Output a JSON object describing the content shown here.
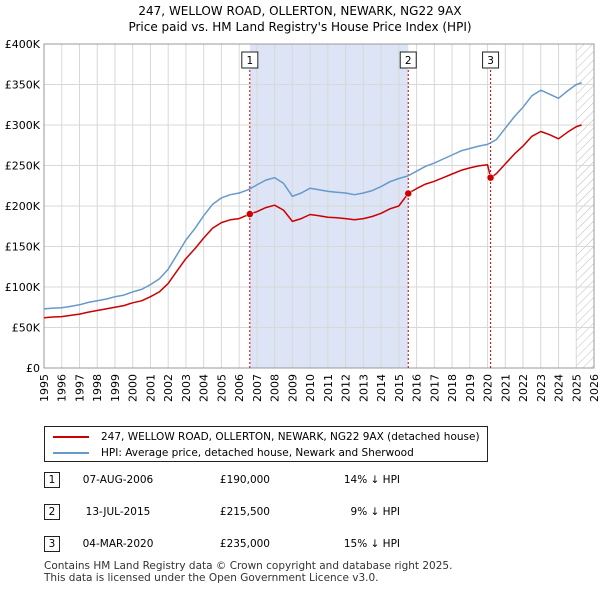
{
  "title": "247, WELLOW ROAD, OLLERTON, NEWARK, NG22 9AX",
  "subtitle": "Price paid vs. HM Land Registry's House Price Index (HPI)",
  "colors": {
    "price": "#cc0000",
    "hpi": "#6699cc",
    "shade": "#dce4f5",
    "marker_line": "#cc0000"
  },
  "legend": {
    "price_label": "247, WELLOW ROAD, OLLERTON, NEWARK, NG22 9AX (detached house)",
    "hpi_label": "HPI: Average price, detached house, Newark and Sherwood"
  },
  "sales": [
    {
      "num": "1",
      "date": "07-AUG-2006",
      "price": "£190,000",
      "hpi": "14% ↓ HPI"
    },
    {
      "num": "2",
      "date": "13-JUL-2015",
      "price": "£215,500",
      "hpi": "9% ↓ HPI"
    },
    {
      "num": "3",
      "date": "04-MAR-2020",
      "price": "£235,000",
      "hpi": "15% ↓ HPI"
    }
  ],
  "footer": {
    "line1": "Contains HM Land Registry data © Crown copyright and database right 2025.",
    "line2": "This data is licensed under the Open Government Licence v3.0."
  },
  "chart_data": {
    "type": "line",
    "xlim": [
      1995,
      2026
    ],
    "ylim": [
      0,
      400000
    ],
    "x_ticks": [
      "1995",
      "1996",
      "1997",
      "1998",
      "1999",
      "2000",
      "2001",
      "2002",
      "2003",
      "2004",
      "2005",
      "2006",
      "2007",
      "2008",
      "2009",
      "2010",
      "2011",
      "2012",
      "2013",
      "2014",
      "2015",
      "2016",
      "2017",
      "2018",
      "2019",
      "2020",
      "2021",
      "2022",
      "2023",
      "2024",
      "2025",
      "2026"
    ],
    "y_ticks": [
      {
        "value": 0,
        "label": "£0"
      },
      {
        "value": 50000,
        "label": "£50K"
      },
      {
        "value": 100000,
        "label": "£100K"
      },
      {
        "value": 150000,
        "label": "£150K"
      },
      {
        "value": 200000,
        "label": "£200K"
      },
      {
        "value": 250000,
        "label": "£250K"
      },
      {
        "value": 300000,
        "label": "£300K"
      },
      {
        "value": 350000,
        "label": "£350K"
      },
      {
        "value": 400000,
        "label": "£400K"
      }
    ],
    "shaded_regions": [
      {
        "from": 2006.6,
        "to": 2015.53
      }
    ],
    "future_hatch_from": 2025.0,
    "sale_markers": [
      {
        "label": "1",
        "x": 2006.6,
        "y": 190000
      },
      {
        "label": "2",
        "x": 2015.53,
        "y": 215500
      },
      {
        "label": "3",
        "x": 2020.17,
        "y": 235000
      }
    ],
    "series": [
      {
        "name": "HPI: Average price, detached house, Newark and Sherwood",
        "points": [
          [
            1995.0,
            73000
          ],
          [
            1995.5,
            74000
          ],
          [
            1996.0,
            74500
          ],
          [
            1996.5,
            76000
          ],
          [
            1997.0,
            78000
          ],
          [
            1997.5,
            81000
          ],
          [
            1998.0,
            83000
          ],
          [
            1998.5,
            85000
          ],
          [
            1999.0,
            88000
          ],
          [
            1999.5,
            90000
          ],
          [
            2000.0,
            94000
          ],
          [
            2000.5,
            97000
          ],
          [
            2001.0,
            103000
          ],
          [
            2001.5,
            110000
          ],
          [
            2002.0,
            122000
          ],
          [
            2002.5,
            140000
          ],
          [
            2003.0,
            158000
          ],
          [
            2003.5,
            172000
          ],
          [
            2004.0,
            188000
          ],
          [
            2004.5,
            202000
          ],
          [
            2005.0,
            210000
          ],
          [
            2005.5,
            214000
          ],
          [
            2006.0,
            216000
          ],
          [
            2006.5,
            220000
          ],
          [
            2007.0,
            226000
          ],
          [
            2007.5,
            232000
          ],
          [
            2008.0,
            235000
          ],
          [
            2008.5,
            228000
          ],
          [
            2009.0,
            212000
          ],
          [
            2009.5,
            216000
          ],
          [
            2010.0,
            222000
          ],
          [
            2010.5,
            220000
          ],
          [
            2011.0,
            218000
          ],
          [
            2011.5,
            217000
          ],
          [
            2012.0,
            216000
          ],
          [
            2012.5,
            214000
          ],
          [
            2013.0,
            216000
          ],
          [
            2013.5,
            219000
          ],
          [
            2014.0,
            224000
          ],
          [
            2014.5,
            230000
          ],
          [
            2015.0,
            234000
          ],
          [
            2015.5,
            237000
          ],
          [
            2016.0,
            243000
          ],
          [
            2016.5,
            249000
          ],
          [
            2017.0,
            253000
          ],
          [
            2017.5,
            258000
          ],
          [
            2018.0,
            263000
          ],
          [
            2018.5,
            268000
          ],
          [
            2019.0,
            271000
          ],
          [
            2019.5,
            274000
          ],
          [
            2020.0,
            276000
          ],
          [
            2020.5,
            282000
          ],
          [
            2021.0,
            296000
          ],
          [
            2021.5,
            310000
          ],
          [
            2022.0,
            322000
          ],
          [
            2022.5,
            336000
          ],
          [
            2023.0,
            343000
          ],
          [
            2023.5,
            338000
          ],
          [
            2024.0,
            333000
          ],
          [
            2024.5,
            342000
          ],
          [
            2025.0,
            350000
          ],
          [
            2025.3,
            352000
          ]
        ]
      },
      {
        "name": "247, WELLOW ROAD, OLLERTON, NEWARK, NG22 9AX (detached house)",
        "points": [
          [
            1995.0,
            62000
          ],
          [
            1995.5,
            63000
          ],
          [
            1996.0,
            63500
          ],
          [
            1996.5,
            65000
          ],
          [
            1997.0,
            66500
          ],
          [
            1997.5,
            69000
          ],
          [
            1998.0,
            71000
          ],
          [
            1998.5,
            73000
          ],
          [
            1999.0,
            75000
          ],
          [
            1999.5,
            77000
          ],
          [
            2000.0,
            80500
          ],
          [
            2000.5,
            83000
          ],
          [
            2001.0,
            88000
          ],
          [
            2001.5,
            94000
          ],
          [
            2002.0,
            104500
          ],
          [
            2002.5,
            120000
          ],
          [
            2003.0,
            135000
          ],
          [
            2003.5,
            147000
          ],
          [
            2004.0,
            160500
          ],
          [
            2004.5,
            172500
          ],
          [
            2005.0,
            179500
          ],
          [
            2005.5,
            183000
          ],
          [
            2006.0,
            184500
          ],
          [
            2006.6,
            190000
          ],
          [
            2007.0,
            193000
          ],
          [
            2007.5,
            198000
          ],
          [
            2008.0,
            201000
          ],
          [
            2008.5,
            195000
          ],
          [
            2009.0,
            181000
          ],
          [
            2009.5,
            184500
          ],
          [
            2010.0,
            189500
          ],
          [
            2010.5,
            188000
          ],
          [
            2011.0,
            186000
          ],
          [
            2011.5,
            185500
          ],
          [
            2012.0,
            184500
          ],
          [
            2012.5,
            183000
          ],
          [
            2013.0,
            184500
          ],
          [
            2013.5,
            187000
          ],
          [
            2014.0,
            191000
          ],
          [
            2014.5,
            196500
          ],
          [
            2015.0,
            200000
          ],
          [
            2015.53,
            215500
          ],
          [
            2016.0,
            221500
          ],
          [
            2016.5,
            227000
          ],
          [
            2017.0,
            230500
          ],
          [
            2017.5,
            235000
          ],
          [
            2018.0,
            239500
          ],
          [
            2018.5,
            244000
          ],
          [
            2019.0,
            247000
          ],
          [
            2019.5,
            249500
          ],
          [
            2020.0,
            251000
          ],
          [
            2020.17,
            235000
          ],
          [
            2020.5,
            240000
          ],
          [
            2021.0,
            252000
          ],
          [
            2021.5,
            264000
          ],
          [
            2022.0,
            274000
          ],
          [
            2022.5,
            286000
          ],
          [
            2023.0,
            292000
          ],
          [
            2023.5,
            288000
          ],
          [
            2024.0,
            283000
          ],
          [
            2024.5,
            291000
          ],
          [
            2025.0,
            298000
          ],
          [
            2025.3,
            300000
          ]
        ]
      }
    ]
  }
}
